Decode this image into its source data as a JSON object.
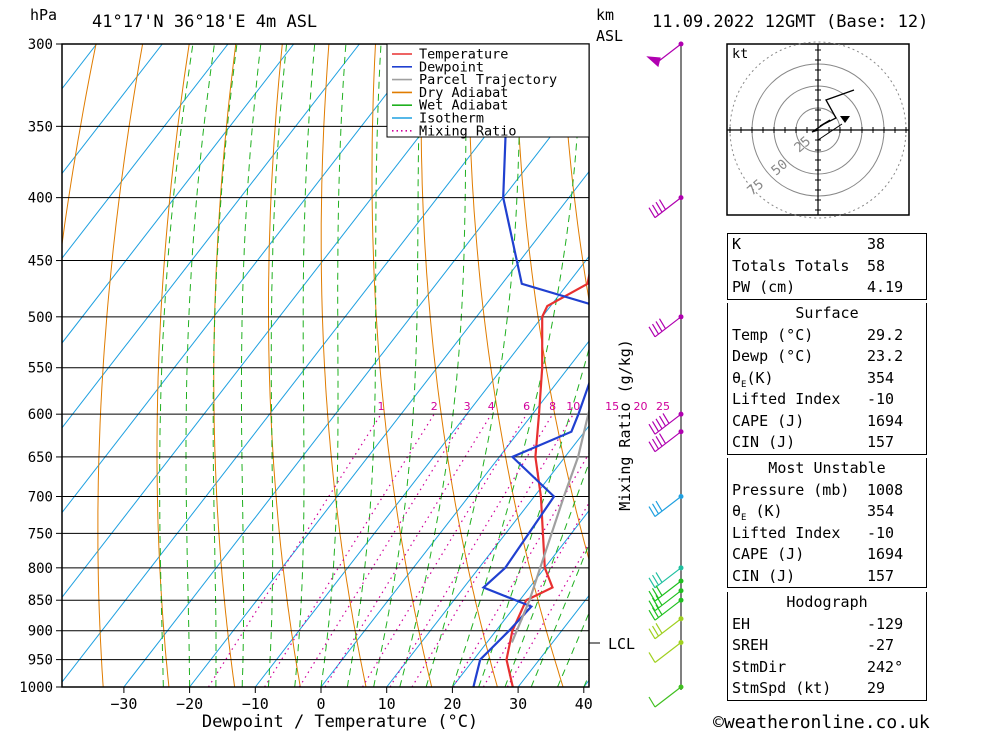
{
  "header": {
    "unit": "hPa",
    "location": "41°17'N  36°18'E  4m  ASL",
    "km_label_1": "km",
    "km_label_2": "ASL",
    "datetime": "11.09.2022  12GMT  (Base: 12)"
  },
  "credit": "©weatheronline.co.uk",
  "chart_data": {
    "type": "line",
    "title": "",
    "xlabel": "Dewpoint / Temperature (°C)",
    "ylabel_right": "Mixing Ratio (g/kg)",
    "x_ticks": [
      -30,
      -20,
      -10,
      0,
      10,
      20,
      30,
      40
    ],
    "xlim": [
      -40,
      40
    ],
    "pressure_levels": [
      300,
      350,
      400,
      450,
      500,
      550,
      600,
      650,
      700,
      750,
      800,
      850,
      900,
      950,
      1000
    ],
    "ylim_hPa": [
      1000,
      300
    ],
    "y_scale": "log-pressure",
    "lcl_label": "LCL",
    "lcl_pressure": 920,
    "mixing_ratio_labels": [
      "1",
      "2",
      "3",
      "4",
      "6",
      "8",
      "10",
      "15",
      "20",
      "25"
    ],
    "legend": {
      "placement": "top-right of plot",
      "entries": [
        {
          "label": "Temperature",
          "color": "#e83030",
          "style": "solid"
        },
        {
          "label": "Dewpoint",
          "color": "#2040d0",
          "style": "solid"
        },
        {
          "label": "Parcel Trajectory",
          "color": "#a0a0a0",
          "style": "solid"
        },
        {
          "label": "Dry Adiabat",
          "color": "#e07c00",
          "style": "solid"
        },
        {
          "label": "Wet Adiabat",
          "color": "#20b020",
          "style": "solid"
        },
        {
          "label": "Isotherm",
          "color": "#1ea0e0",
          "style": "solid"
        },
        {
          "label": "Mixing Ratio",
          "color": "#d0009b",
          "style": "dotted"
        }
      ]
    },
    "series": [
      {
        "name": "Temperature",
        "color": "#e83030",
        "points": [
          [
            1000,
            29.2
          ],
          [
            950,
            25
          ],
          [
            900,
            22.5
          ],
          [
            850,
            21
          ],
          [
            830,
            23.5
          ],
          [
            800,
            20
          ],
          [
            700,
            11
          ],
          [
            650,
            5.5
          ],
          [
            600,
            1
          ],
          [
            550,
            -4
          ],
          [
            500,
            -10
          ],
          [
            490,
            -10.5
          ],
          [
            470,
            -7
          ],
          [
            400,
            -14.5
          ],
          [
            350,
            -24
          ],
          [
            310,
            -31
          ],
          [
            300,
            -31.5
          ]
        ]
      },
      {
        "name": "Dewpoint",
        "color": "#2040d0",
        "points": [
          [
            1000,
            23.2
          ],
          [
            950,
            21
          ],
          [
            900,
            22
          ],
          [
            860,
            22.5
          ],
          [
            830,
            13
          ],
          [
            800,
            14
          ],
          [
            700,
            13
          ],
          [
            650,
            2
          ],
          [
            620,
            8
          ],
          [
            600,
            7
          ],
          [
            550,
            4
          ],
          [
            500,
            1
          ],
          [
            490,
            -3
          ],
          [
            470,
            -17
          ],
          [
            400,
            -30
          ],
          [
            350,
            -38
          ],
          [
            310,
            -43
          ],
          [
            300,
            -46
          ]
        ]
      },
      {
        "name": "Parcel Trajectory",
        "color": "#a0a0a0",
        "points": [
          [
            920,
            23.8
          ],
          [
            850,
            21.5
          ],
          [
            800,
            19.3
          ],
          [
            700,
            14.5
          ],
          [
            650,
            12
          ],
          [
            600,
            8.5
          ],
          [
            550,
            5
          ],
          [
            500,
            0.5
          ],
          [
            450,
            -4.5
          ],
          [
            400,
            -10.5
          ],
          [
            370,
            -14.5
          ]
        ]
      }
    ]
  },
  "hodograph": {
    "unit_label": "kt",
    "ring_labels": [
      "25",
      "50",
      "75"
    ]
  },
  "indices": {
    "k_label": "K",
    "k_value": "38",
    "tt_label": "Totals Totals",
    "tt_value": "58",
    "pw_label": "PW (cm)",
    "pw_value": "4.19"
  },
  "surface": {
    "title": "Surface",
    "temp_label": "Temp (°C)",
    "temp_value": "29.2",
    "dewp_label": "Dewp (°C)",
    "dewp_value": "23.2",
    "theta_label": "θ",
    "theta_sub": "E",
    "theta_unit": "(K)",
    "theta_value": "354",
    "li_label": "Lifted Index",
    "li_value": "-10",
    "cape_label": "CAPE (J)",
    "cape_value": "1694",
    "cin_label": "CIN (J)",
    "cin_value": "157"
  },
  "most_unstable": {
    "title": "Most Unstable",
    "pressure_label": "Pressure (mb)",
    "pressure_value": "1008",
    "theta_label": "θ",
    "theta_sub": "E",
    "theta_unit": " (K)",
    "theta_value": "354",
    "li_label": "Lifted Index",
    "li_value": "-10",
    "cape_label": "CAPE (J)",
    "cape_value": "1694",
    "cin_label": "CIN (J)",
    "cin_value": "157"
  },
  "hodograph_table": {
    "title": "Hodograph",
    "eh_label": "EH",
    "eh_value": "-129",
    "sreh_label": "SREH",
    "sreh_value": "-27",
    "stmdir_label": "StmDir",
    "stmdir_value": "242°",
    "stmspd_label": "StmSpd (kt)",
    "stmspd_value": "29"
  }
}
